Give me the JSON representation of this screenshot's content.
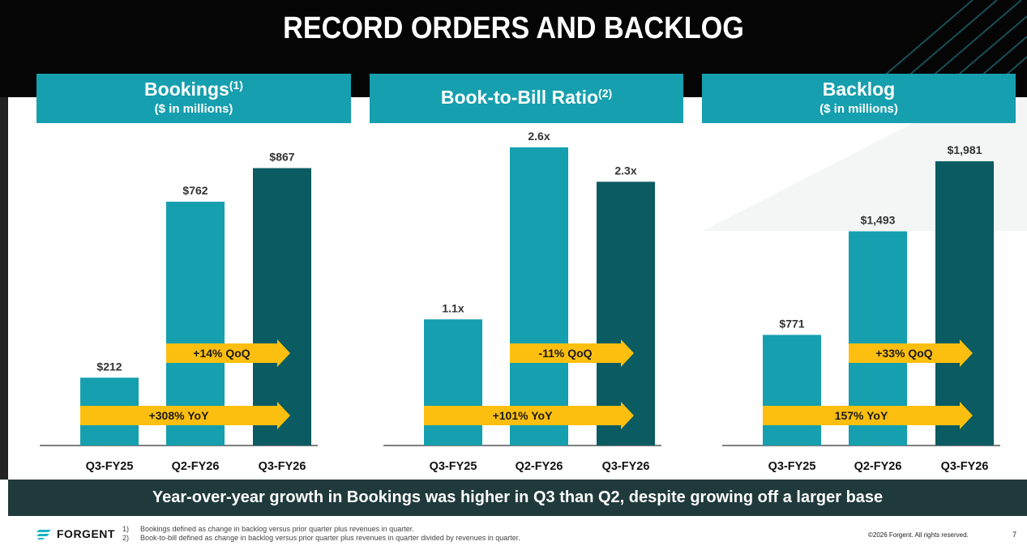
{
  "title": "RECORD ORDERS AND BACKLOG",
  "panels": [
    {
      "title": "Bookings",
      "sup": "(1)",
      "subtitle": "($ in millions)"
    },
    {
      "title": "Book-to-Bill Ratio",
      "sup": "(2)",
      "subtitle": ""
    },
    {
      "title": "Backlog",
      "sup": "",
      "subtitle": "($ in millions)"
    }
  ],
  "chart_data": [
    {
      "type": "bar",
      "categories": [
        "Q3-FY25",
        "Q2-FY26",
        "Q3-FY26"
      ],
      "values": [
        212,
        762,
        867
      ],
      "value_labels": [
        "$212",
        "$762",
        "$867"
      ],
      "ylim": [
        0,
        1000
      ],
      "annotations": [
        "+14% QoQ",
        "+308% YoY"
      ]
    },
    {
      "type": "bar",
      "categories": [
        "Q3-FY25",
        "Q2-FY26",
        "Q3-FY26"
      ],
      "values": [
        1.1,
        2.6,
        2.3
      ],
      "value_labels": [
        "1.1x",
        "2.6x",
        "2.3x"
      ],
      "ylim": [
        0,
        2.79
      ],
      "annotations": [
        "-11% QoQ",
        "+101% YoY"
      ]
    },
    {
      "type": "bar",
      "categories": [
        "Q3-FY25",
        "Q2-FY26",
        "Q3-FY26"
      ],
      "values": [
        771,
        1493,
        1981
      ],
      "value_labels": [
        "$771",
        "$1,493",
        "$1,981"
      ],
      "ylim": [
        0,
        2230
      ],
      "annotations": [
        "+33% QoQ",
        "157% YoY"
      ]
    }
  ],
  "colors": {
    "bar_light": "#169fae",
    "bar_dark": "#0a5b62",
    "arrow": "#fdbf0f",
    "header_bg": "#050505",
    "banner_bg": "#203a3c"
  },
  "banner": "Year-over-year growth in Bookings was higher in Q3 than Q2, despite growing off a larger base",
  "footer": {
    "logo": "FORGENT",
    "notes": [
      {
        "num": "1)",
        "text": "Bookings defined as change in backlog versus prior quarter plus revenues in quarter."
      },
      {
        "num": "2)",
        "text": "Book-to-bill defined as change in backlog versus prior quarter plus revenues in quarter divided by revenues in quarter."
      }
    ],
    "copyright": "©2026 Forgent. All rights reserved.",
    "page": "7"
  }
}
